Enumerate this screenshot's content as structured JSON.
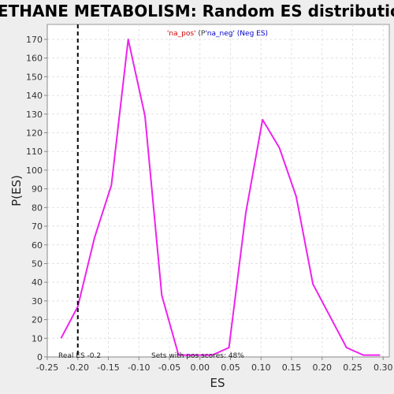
{
  "chart_data": {
    "type": "line",
    "title": "METHANE METABOLISM: Random ES distribution",
    "legend": {
      "pos_label": "'na_pos'",
      "mid_label": " (P",
      "neg_label": "'na_neg' (Neg ES)",
      "placement": "top-center",
      "colors": {
        "pos": "#d00000",
        "mid": "#333333",
        "neg": "#0000cc"
      }
    },
    "xlabel": "ES",
    "ylabel": "P(ES)",
    "xlim": [
      -0.25,
      0.31
    ],
    "ylim": [
      0,
      178
    ],
    "x_ticks": [
      -0.25,
      -0.2,
      -0.15,
      -0.1,
      -0.05,
      0.0,
      0.05,
      0.1,
      0.15,
      0.2,
      0.25,
      0.3
    ],
    "x_tick_labels": [
      "-0.25",
      "-0.20",
      "-0.15",
      "-0.10",
      "-0.05",
      "0.00",
      "0.05",
      "0.10",
      "0.15",
      "0.20",
      "0.25",
      "0.30"
    ],
    "y_ticks": [
      0,
      10,
      20,
      30,
      40,
      50,
      60,
      70,
      80,
      90,
      100,
      110,
      120,
      130,
      140,
      150,
      160,
      170
    ],
    "grid": true,
    "series": [
      {
        "color": "#ee22ee",
        "x": [
          -0.2275,
          -0.2,
          -0.1725,
          -0.145,
          -0.1175,
          -0.09,
          -0.0625,
          -0.035,
          -0.0075,
          0.02,
          0.0475,
          0.075,
          0.1025,
          0.13,
          0.1575,
          0.185,
          0.2125,
          0.24,
          0.2675,
          0.295
        ],
        "y": [
          10,
          27,
          64,
          92,
          170,
          129,
          33,
          1,
          1,
          1,
          5,
          77,
          127,
          112,
          86,
          39,
          22,
          5,
          1,
          1
        ]
      }
    ],
    "real_es": -0.2,
    "annotations": {
      "real_es_label": "Real ES -0.2",
      "pos_scores_label": "Sets with pos scores: 48%"
    }
  }
}
